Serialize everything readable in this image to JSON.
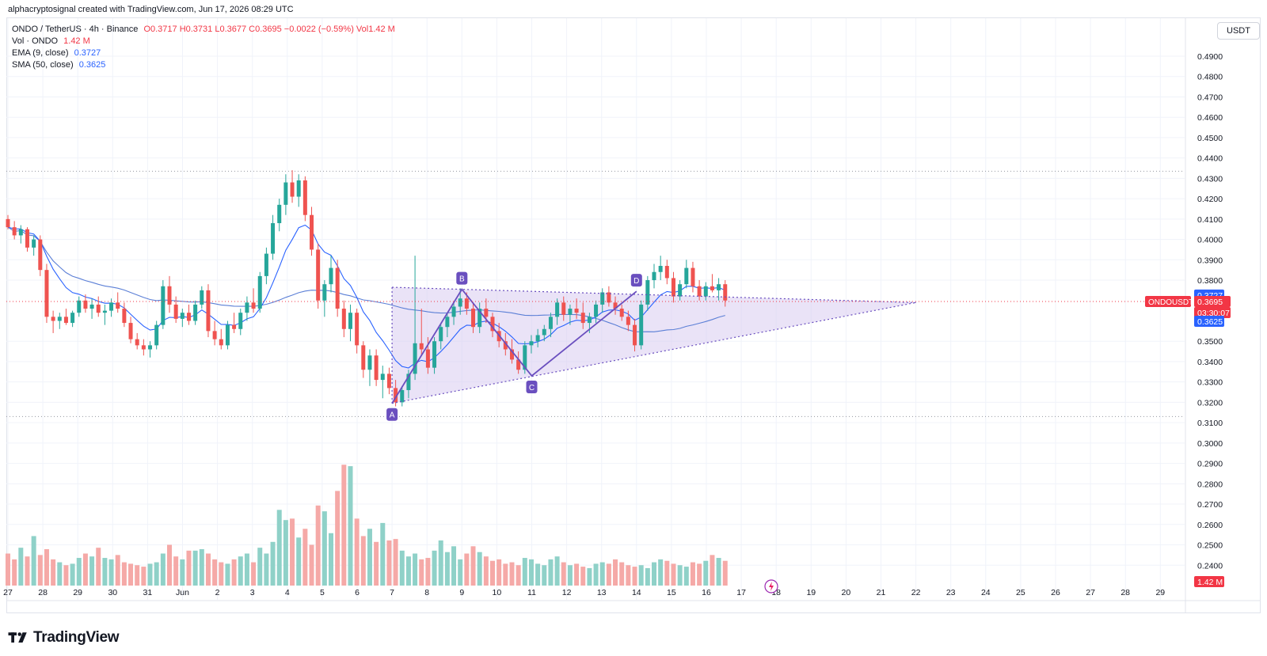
{
  "header": {
    "credit": "alphacryptosignal created with TradingView.com, Jun 17, 2026 08:29 UTC"
  },
  "legend": {
    "symbol_line": {
      "label": "ONDO / TetherUS · 4h · Binance",
      "ohlc": "O0.3717 H0.3731 L0.3677 C0.3695 −0.0022 (−0.59%) Vol1.42 M"
    },
    "volume": {
      "label": "Vol · ONDO",
      "value": "1.42 M"
    },
    "ema": {
      "label": "EMA (9, close)",
      "value": "0.3727"
    },
    "sma": {
      "label": "SMA (50, close)",
      "value": "0.3625"
    }
  },
  "price_axis": {
    "unit": "USDT",
    "tick_labels": [
      "0.4900",
      "0.4800",
      "0.4700",
      "0.4600",
      "0.4500",
      "0.4400",
      "0.4300",
      "0.4200",
      "0.4100",
      "0.4000",
      "0.3900",
      "0.3800",
      "0.3500",
      "0.3400",
      "0.3300",
      "0.3200",
      "0.3100",
      "0.3000",
      "0.2900",
      "0.2800",
      "0.2700",
      "0.2600",
      "0.2500",
      "0.2400"
    ],
    "tags": {
      "ema_value": "0.3727",
      "symbol": "ONDOUSDT",
      "last_price": "0.3695",
      "countdown": "03:30:07",
      "sma_value": "0.3625",
      "volume_value": "1.42 M"
    }
  },
  "time_axis": {
    "tick_labels": [
      "27",
      "28",
      "29",
      "30",
      "31",
      "Jun",
      "2",
      "3",
      "4",
      "5",
      "6",
      "7",
      "8",
      "9",
      "10",
      "11",
      "12",
      "13",
      "14",
      "15",
      "16",
      "17",
      "18",
      "19",
      "20",
      "21",
      "22",
      "23",
      "24",
      "25",
      "26",
      "27",
      "28",
      "29"
    ]
  },
  "pattern_labels": [
    "A",
    "B",
    "C",
    "D"
  ],
  "branding": {
    "name": "TradingView"
  },
  "colors": {
    "up": "#26a69a",
    "down": "#ef5350",
    "volume_up": "#8fd1c8",
    "volume_down": "#f5a9a7",
    "ema": "#2962ff",
    "sma": "#5b7fd6",
    "pattern": "#6a4fbf",
    "triangle_fill": "#d8ccf0",
    "last_price": "#f23645"
  },
  "chart_data": {
    "type": "candlestick",
    "symbol": "ONDO / TetherUS",
    "interval": "4h",
    "exchange": "Binance",
    "ylim": [
      0.236,
      0.497
    ],
    "x": [
      "27",
      "28",
      "29",
      "30",
      "31",
      "Jun",
      "2",
      "3",
      "4",
      "5",
      "6",
      "7",
      "8",
      "9",
      "10",
      "11",
      "12",
      "13",
      "14",
      "15",
      "16",
      "17"
    ],
    "candles": [
      [
        0.41,
        0.412,
        0.405,
        0.406
      ],
      [
        0.406,
        0.409,
        0.4,
        0.402
      ],
      [
        0.402,
        0.407,
        0.398,
        0.405
      ],
      [
        0.405,
        0.406,
        0.394,
        0.396
      ],
      [
        0.396,
        0.402,
        0.392,
        0.4
      ],
      [
        0.4,
        0.402,
        0.382,
        0.385
      ],
      [
        0.385,
        0.388,
        0.359,
        0.362
      ],
      [
        0.362,
        0.365,
        0.354,
        0.36
      ],
      [
        0.36,
        0.364,
        0.356,
        0.362
      ],
      [
        0.362,
        0.366,
        0.358,
        0.359
      ],
      [
        0.359,
        0.365,
        0.357,
        0.364
      ],
      [
        0.364,
        0.372,
        0.362,
        0.37
      ],
      [
        0.37,
        0.373,
        0.364,
        0.366
      ],
      [
        0.366,
        0.371,
        0.361,
        0.368
      ],
      [
        0.368,
        0.372,
        0.362,
        0.364
      ],
      [
        0.364,
        0.368,
        0.358,
        0.365
      ],
      [
        0.365,
        0.371,
        0.362,
        0.369
      ],
      [
        0.369,
        0.374,
        0.364,
        0.366
      ],
      [
        0.366,
        0.369,
        0.357,
        0.359
      ],
      [
        0.359,
        0.362,
        0.349,
        0.351
      ],
      [
        0.351,
        0.354,
        0.346,
        0.348
      ],
      [
        0.348,
        0.351,
        0.343,
        0.346
      ],
      [
        0.346,
        0.35,
        0.342,
        0.348
      ],
      [
        0.348,
        0.36,
        0.346,
        0.358
      ],
      [
        0.358,
        0.38,
        0.356,
        0.377
      ],
      [
        0.377,
        0.382,
        0.364,
        0.368
      ],
      [
        0.368,
        0.372,
        0.359,
        0.361
      ],
      [
        0.361,
        0.366,
        0.357,
        0.364
      ],
      [
        0.364,
        0.368,
        0.358,
        0.36
      ],
      [
        0.36,
        0.37,
        0.358,
        0.368
      ],
      [
        0.368,
        0.377,
        0.366,
        0.375
      ],
      [
        0.375,
        0.378,
        0.352,
        0.355
      ],
      [
        0.355,
        0.36,
        0.348,
        0.351
      ],
      [
        0.351,
        0.356,
        0.346,
        0.348
      ],
      [
        0.348,
        0.36,
        0.346,
        0.358
      ],
      [
        0.358,
        0.364,
        0.354,
        0.356
      ],
      [
        0.356,
        0.366,
        0.353,
        0.364
      ],
      [
        0.364,
        0.372,
        0.36,
        0.369
      ],
      [
        0.369,
        0.376,
        0.364,
        0.366
      ],
      [
        0.366,
        0.384,
        0.364,
        0.382
      ],
      [
        0.382,
        0.396,
        0.378,
        0.393
      ],
      [
        0.393,
        0.412,
        0.39,
        0.408
      ],
      [
        0.408,
        0.42,
        0.404,
        0.417
      ],
      [
        0.417,
        0.432,
        0.412,
        0.428
      ],
      [
        0.428,
        0.434,
        0.418,
        0.421
      ],
      [
        0.421,
        0.432,
        0.416,
        0.429
      ],
      [
        0.429,
        0.431,
        0.409,
        0.412
      ],
      [
        0.412,
        0.416,
        0.392,
        0.395
      ],
      [
        0.395,
        0.398,
        0.366,
        0.37
      ],
      [
        0.37,
        0.38,
        0.362,
        0.378
      ],
      [
        0.378,
        0.392,
        0.374,
        0.386
      ],
      [
        0.386,
        0.39,
        0.362,
        0.366
      ],
      [
        0.366,
        0.37,
        0.352,
        0.356
      ],
      [
        0.356,
        0.368,
        0.35,
        0.364
      ],
      [
        0.364,
        0.366,
        0.344,
        0.348
      ],
      [
        0.348,
        0.35,
        0.332,
        0.336
      ],
      [
        0.336,
        0.346,
        0.328,
        0.343
      ],
      [
        0.343,
        0.346,
        0.328,
        0.331
      ],
      [
        0.331,
        0.338,
        0.322,
        0.334
      ],
      [
        0.334,
        0.337,
        0.324,
        0.327
      ],
      [
        0.327,
        0.331,
        0.318,
        0.32
      ],
      [
        0.32,
        0.328,
        0.318,
        0.326
      ],
      [
        0.326,
        0.336,
        0.322,
        0.334
      ],
      [
        0.334,
        0.392,
        0.331,
        0.349
      ],
      [
        0.349,
        0.366,
        0.343,
        0.346
      ],
      [
        0.346,
        0.352,
        0.334,
        0.337
      ],
      [
        0.337,
        0.352,
        0.334,
        0.35
      ],
      [
        0.35,
        0.359,
        0.346,
        0.357
      ],
      [
        0.357,
        0.364,
        0.352,
        0.362
      ],
      [
        0.362,
        0.369,
        0.358,
        0.367
      ],
      [
        0.367,
        0.376,
        0.363,
        0.371
      ],
      [
        0.371,
        0.374,
        0.363,
        0.366
      ],
      [
        0.366,
        0.369,
        0.354,
        0.357
      ],
      [
        0.357,
        0.369,
        0.354,
        0.366
      ],
      [
        0.366,
        0.371,
        0.359,
        0.362
      ],
      [
        0.362,
        0.364,
        0.352,
        0.355
      ],
      [
        0.355,
        0.359,
        0.347,
        0.35
      ],
      [
        0.35,
        0.354,
        0.343,
        0.346
      ],
      [
        0.346,
        0.351,
        0.339,
        0.341
      ],
      [
        0.341,
        0.345,
        0.334,
        0.336
      ],
      [
        0.336,
        0.35,
        0.334,
        0.348
      ],
      [
        0.348,
        0.353,
        0.344,
        0.35
      ],
      [
        0.35,
        0.356,
        0.347,
        0.353
      ],
      [
        0.353,
        0.358,
        0.35,
        0.356
      ],
      [
        0.356,
        0.364,
        0.352,
        0.362
      ],
      [
        0.362,
        0.371,
        0.358,
        0.369
      ],
      [
        0.369,
        0.372,
        0.36,
        0.363
      ],
      [
        0.363,
        0.368,
        0.358,
        0.366
      ],
      [
        0.366,
        0.371,
        0.361,
        0.364
      ],
      [
        0.364,
        0.369,
        0.356,
        0.359
      ],
      [
        0.359,
        0.364,
        0.354,
        0.362
      ],
      [
        0.362,
        0.37,
        0.359,
        0.368
      ],
      [
        0.368,
        0.376,
        0.364,
        0.374
      ],
      [
        0.374,
        0.377,
        0.367,
        0.369
      ],
      [
        0.369,
        0.372,
        0.363,
        0.366
      ],
      [
        0.366,
        0.368,
        0.36,
        0.362
      ],
      [
        0.362,
        0.365,
        0.355,
        0.358
      ],
      [
        0.358,
        0.361,
        0.345,
        0.348
      ],
      [
        0.348,
        0.37,
        0.346,
        0.368
      ],
      [
        0.368,
        0.382,
        0.365,
        0.38
      ],
      [
        0.38,
        0.388,
        0.376,
        0.384
      ],
      [
        0.384,
        0.392,
        0.38,
        0.387
      ],
      [
        0.387,
        0.39,
        0.378,
        0.381
      ],
      [
        0.381,
        0.384,
        0.369,
        0.372
      ],
      [
        0.372,
        0.38,
        0.37,
        0.378
      ],
      [
        0.378,
        0.39,
        0.376,
        0.386
      ],
      [
        0.386,
        0.389,
        0.374,
        0.377
      ],
      [
        0.377,
        0.38,
        0.37,
        0.372
      ],
      [
        0.372,
        0.379,
        0.37,
        0.377
      ],
      [
        0.377,
        0.383,
        0.374,
        0.375
      ],
      [
        0.375,
        0.381,
        0.37,
        0.378
      ],
      [
        0.378,
        0.38,
        0.367,
        0.37
      ]
    ],
    "volume_relative": [
      0.22,
      0.18,
      0.26,
      0.2,
      0.34,
      0.21,
      0.25,
      0.18,
      0.16,
      0.14,
      0.15,
      0.19,
      0.22,
      0.2,
      0.26,
      0.19,
      0.18,
      0.21,
      0.16,
      0.15,
      0.14,
      0.13,
      0.15,
      0.16,
      0.22,
      0.28,
      0.2,
      0.18,
      0.24,
      0.24,
      0.25,
      0.22,
      0.18,
      0.16,
      0.15,
      0.18,
      0.2,
      0.22,
      0.16,
      0.26,
      0.22,
      0.3,
      0.52,
      0.45,
      0.46,
      0.33,
      0.39,
      0.28,
      0.55,
      0.51,
      0.36,
      0.65,
      0.83,
      0.82,
      0.46,
      0.34,
      0.39,
      0.3,
      0.43,
      0.31,
      0.32,
      0.24,
      0.2,
      0.22,
      0.18,
      0.19,
      0.24,
      0.31,
      0.23,
      0.27,
      0.18,
      0.22,
      0.27,
      0.23,
      0.2,
      0.17,
      0.18,
      0.15,
      0.16,
      0.14,
      0.19,
      0.18,
      0.15,
      0.14,
      0.18,
      0.2,
      0.16,
      0.14,
      0.15,
      0.13,
      0.12,
      0.15,
      0.16,
      0.15,
      0.18,
      0.16,
      0.14,
      0.13,
      0.14,
      0.12,
      0.16,
      0.18,
      0.17,
      0.15,
      0.14,
      0.13,
      0.16,
      0.15,
      0.17,
      0.21,
      0.19,
      0.17,
      0.16,
      0.15,
      0.18,
      0.21,
      0.29,
      0.24,
      0.19,
      0.17
    ],
    "volume_latest": "1.42 M",
    "last": {
      "open": 0.3717,
      "high": 0.3731,
      "low": 0.3677,
      "close": 0.3695,
      "change": -0.0022,
      "change_pct": -0.59
    },
    "indicators": {
      "ema9": {
        "label": "EMA (9, close)",
        "last": 0.3727
      },
      "sma50": {
        "label": "SMA (50, close)",
        "last": 0.3625
      }
    },
    "horizontal_levels": [
      0.4335,
      0.313
    ],
    "pattern": {
      "type": "triangle",
      "points": {
        "A": {
          "x": "7",
          "price": 0.3195
        },
        "B": {
          "x": "9",
          "price": 0.3755
        },
        "C": {
          "x": "11",
          "price": 0.333
        },
        "D": {
          "x": "14",
          "price": 0.3745
        }
      },
      "upper_line": [
        [
          0.3765,
          0.369
        ],
        [
          "7",
          "22"
        ]
      ],
      "lower_line": [
        [
          0.3195,
          0.369
        ],
        [
          "7",
          "22"
        ]
      ]
    }
  }
}
